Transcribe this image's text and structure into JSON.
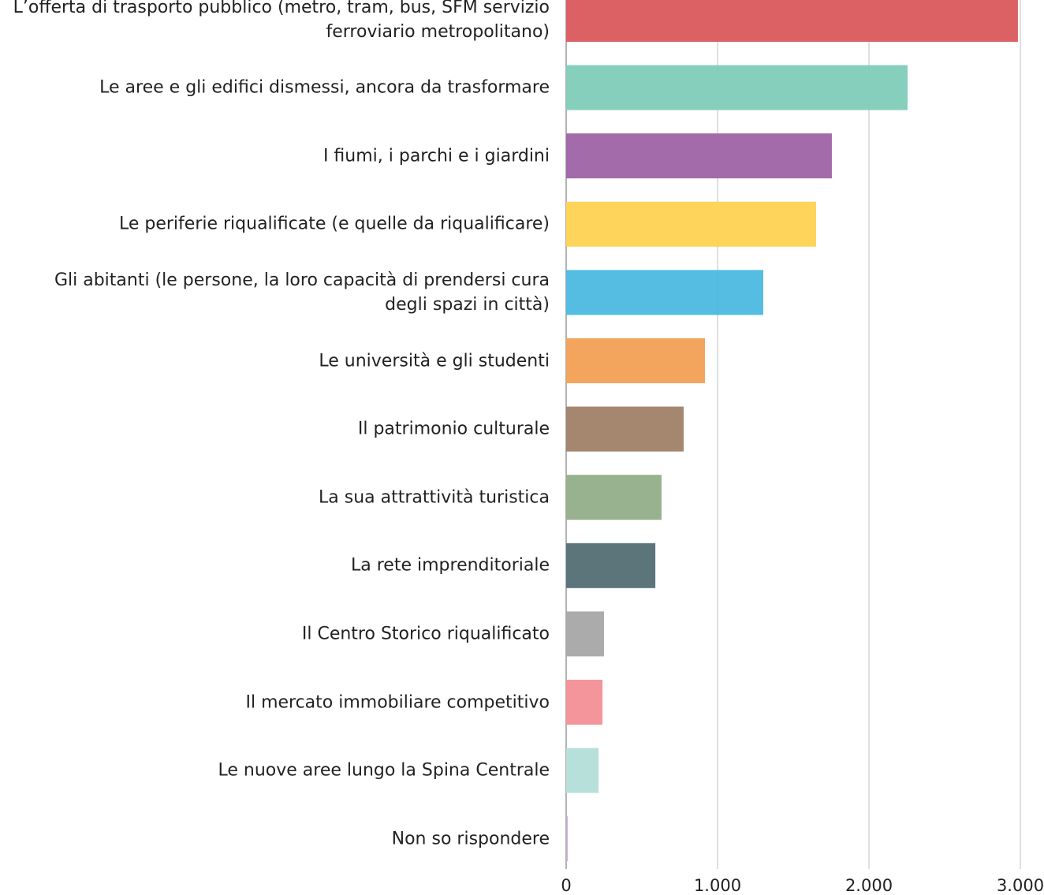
{
  "chart_data": {
    "type": "bar",
    "orientation": "horizontal",
    "categories": [
      "L’offerta di trasporto pubblico (metro, tram, bus, SFM servizio\nferroviario metropolitano)",
      "Le aree e gli edifici dismessi, ancora da trasformare",
      "I fiumi, i parchi e i giardini",
      "Le periferie riqualificate (e quelle da riqualificare)",
      "Gli abitanti (le persone, la loro capacità di prendersi cura\ndegli spazi in città)",
      "Le università e gli studenti",
      "Il patrimonio culturale",
      "La sua attrattività turistica",
      "La rete imprenditoriale",
      "Il Centro Storico riqualificato",
      "Il mercato immobiliare competitivo",
      "Le nuove aree lungo la Spina Centrale",
      "Non so rispondere"
    ],
    "values": [
      2984,
      2255,
      1755,
      1651,
      1302,
      917,
      776,
      630,
      589,
      250,
      240,
      214,
      10
    ],
    "colors": [
      "#d9595c",
      "#80ccb9",
      "#9f63a5",
      "#fed351",
      "#4cb8e0",
      "#f2a055",
      "#a08067",
      "#92ad89",
      "#536e73",
      "#a6a6a6",
      "#f28f96",
      "#b4ded8",
      "#c3a9d0"
    ],
    "xlim": [
      0,
      3000
    ],
    "xticks": [
      0,
      {
        "value": 1000,
        "label": "1.000"
      },
      {
        "value": 2000,
        "label": "2.000"
      },
      {
        "value": 3000,
        "label": "3.000"
      }
    ],
    "grid": true
  }
}
